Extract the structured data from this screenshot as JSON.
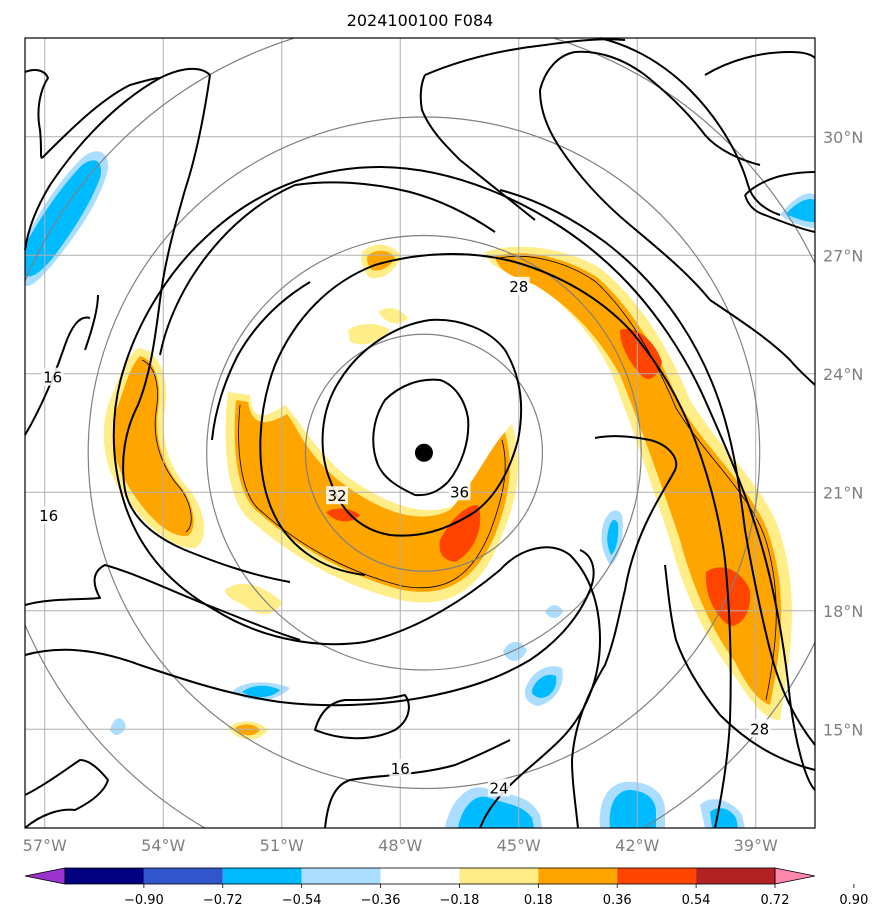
{
  "title": "2024100100 F084",
  "map": {
    "lon_range": [
      -57.5,
      -37.5
    ],
    "lat_range": [
      12.5,
      32.5
    ],
    "lon_ticks": [
      {
        "value": -57,
        "label": "57°W"
      },
      {
        "value": -54,
        "label": "54°W"
      },
      {
        "value": -51,
        "label": "51°W"
      },
      {
        "value": -48,
        "label": "48°W"
      },
      {
        "value": -45,
        "label": "45°W"
      },
      {
        "value": -42,
        "label": "42°W"
      },
      {
        "value": -39,
        "label": "39°W"
      }
    ],
    "lat_ticks": [
      {
        "value": 30,
        "label": "30°N"
      },
      {
        "value": 27,
        "label": "27°N"
      },
      {
        "value": 24,
        "label": "24°N"
      },
      {
        "value": 21,
        "label": "21°N"
      },
      {
        "value": 18,
        "label": "18°N"
      },
      {
        "value": 15,
        "label": "15°N"
      }
    ],
    "storm_center": {
      "lon": -47.4,
      "lat": 22.0
    },
    "range_ring_radii_deg": [
      3,
      5.5,
      8.5,
      11
    ],
    "contour_labels": [
      {
        "text": "16",
        "lon": -56.8,
        "lat": 23.9
      },
      {
        "text": "16",
        "lon": -56.9,
        "lat": 20.4
      },
      {
        "text": "16",
        "lon": -48.0,
        "lat": 14.0
      },
      {
        "text": "24",
        "lon": -45.5,
        "lat": 13.5
      },
      {
        "text": "28",
        "lon": -45.0,
        "lat": 26.2
      },
      {
        "text": "28",
        "lon": -38.9,
        "lat": 15.0
      },
      {
        "text": "32",
        "lon": -49.6,
        "lat": 20.9
      },
      {
        "text": "36",
        "lon": -46.5,
        "lat": 21.0
      }
    ]
  },
  "colorbar": {
    "colors": [
      "#9933cc",
      "#000080",
      "#3355cc",
      "#00bbff",
      "#aaddff",
      "#ffffff",
      "#ffee88",
      "#ffa500",
      "#ff4400",
      "#b22222",
      "#ff88aa"
    ],
    "tick_labels": [
      "−0.90",
      "−0.72",
      "−0.54",
      "−0.36",
      "−0.18",
      "0.18",
      "0.36",
      "0.54",
      "0.72",
      "0.90"
    ]
  }
}
